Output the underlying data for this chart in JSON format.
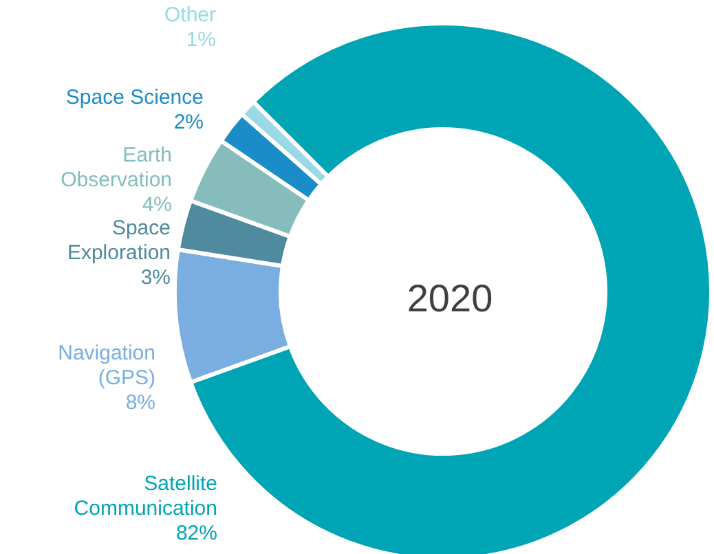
{
  "chart_data": {
    "type": "donut",
    "title": "2020",
    "categories": [
      "Satellite\nCommunication",
      "Navigation\n(GPS)",
      "Space\nExploration",
      "Earth\nObservation",
      "Space Science",
      "Other"
    ],
    "values": [
      82,
      8,
      3,
      4,
      2,
      1
    ],
    "colors": [
      "#00a5b5",
      "#7aaee0",
      "#4f8a9e",
      "#86bcbc",
      "#1a8cc8",
      "#9ad8e6"
    ],
    "value_labels": [
      "82%",
      "8%",
      "3%",
      "4%",
      "2%",
      "1%"
    ],
    "legend": false
  }
}
